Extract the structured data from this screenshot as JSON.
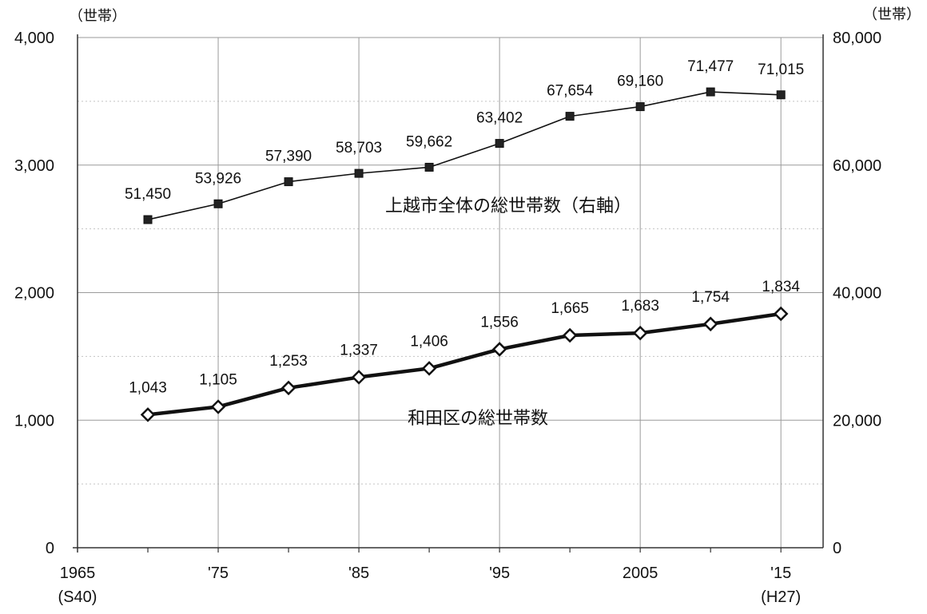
{
  "chart_data": {
    "type": "line",
    "left_axis_unit": "（世帯）",
    "right_axis_unit": "（世帯）",
    "left_ylim": [
      0,
      4000
    ],
    "right_ylim": [
      0,
      80000
    ],
    "left_ticks": [
      "4,000",
      "3,000",
      "2,000",
      "1,000",
      "0"
    ],
    "right_ticks": [
      "80,000",
      "60,000",
      "40,000",
      "20,000",
      "0"
    ],
    "xlim": [
      1965,
      2018
    ],
    "x_tick_labels": [
      {
        "x": 1965,
        "line1": "1965",
        "line2": "(S40)"
      },
      {
        "x": 1975,
        "line1": "'75",
        "line2": ""
      },
      {
        "x": 1985,
        "line1": "'85",
        "line2": ""
      },
      {
        "x": 1995,
        "line1": "'95",
        "line2": ""
      },
      {
        "x": 2005,
        "line1": "2005",
        "line2": ""
      },
      {
        "x": 2015,
        "line1": "'15",
        "line2": "(H27)"
      }
    ],
    "grid": true,
    "series": [
      {
        "name": "上越市全体の総世帯数（右軸）",
        "axis": "right",
        "marker": "square",
        "x": [
          1970,
          1975,
          1980,
          1985,
          1990,
          1995,
          2000,
          2005,
          2010,
          2015
        ],
        "values": [
          51450,
          53926,
          57390,
          58703,
          59662,
          63402,
          67654,
          69160,
          71477,
          71015
        ],
        "labels": [
          "51,450",
          "53,926",
          "57,390",
          "58,703",
          "59,662",
          "63,402",
          "67,654",
          "69,160",
          "71,477",
          "71,015"
        ]
      },
      {
        "name": "和田区の総世帯数",
        "axis": "left",
        "marker": "diamond",
        "x": [
          1970,
          1975,
          1980,
          1985,
          1990,
          1995,
          2000,
          2005,
          2010,
          2015
        ],
        "values": [
          1043,
          1105,
          1253,
          1337,
          1406,
          1556,
          1665,
          1683,
          1754,
          1834
        ],
        "labels": [
          "1,043",
          "1,105",
          "1,253",
          "1,337",
          "1,406",
          "1,556",
          "1,665",
          "1,683",
          "1,754",
          "1,834"
        ]
      }
    ]
  }
}
